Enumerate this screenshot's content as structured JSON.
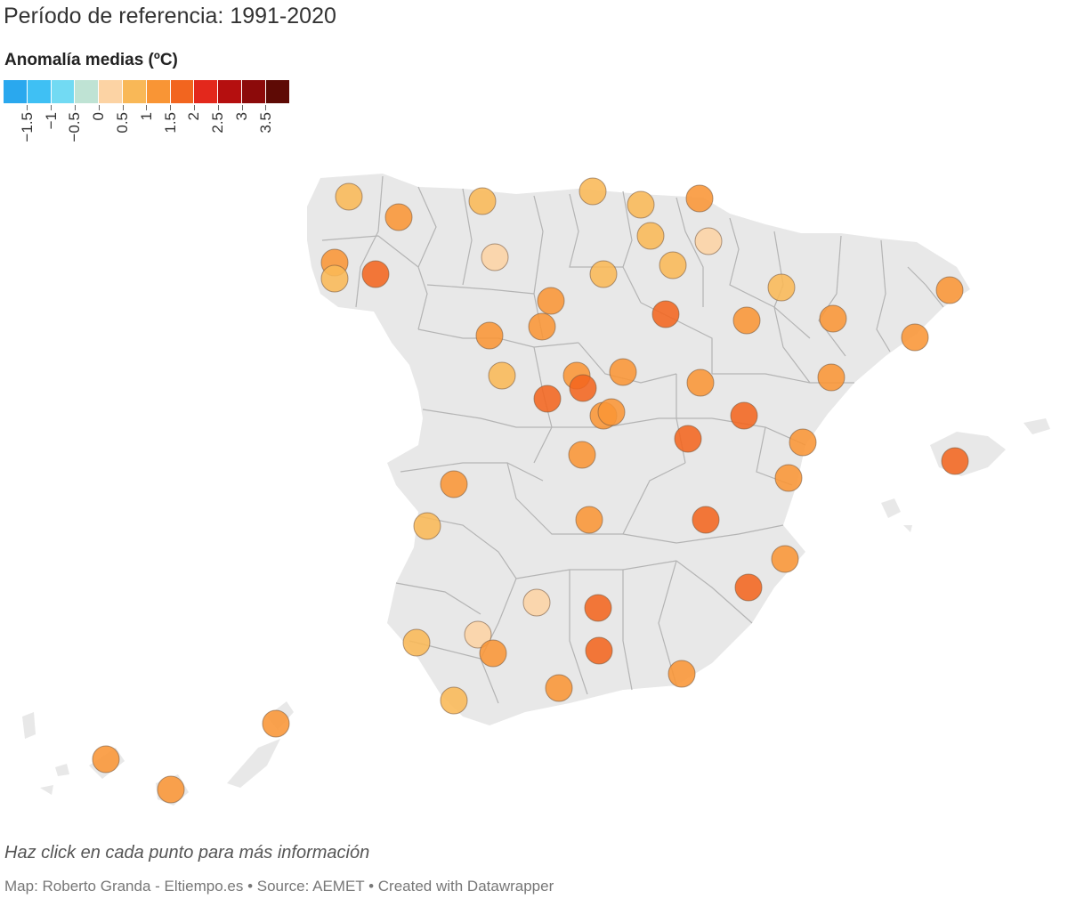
{
  "subtitle": "Período de referencia: 1991-2020",
  "legend": {
    "title": "Anomalía medias (ºC)",
    "swatches": [
      "#2aa8ee",
      "#3fc0f4",
      "#72daf3",
      "#bfe3d4",
      "#fcd3a4",
      "#f9b857",
      "#f99535",
      "#f2651f",
      "#e3281c",
      "#b50f0f",
      "#8c0a0a",
      "#5e0a05"
    ],
    "labels": [
      "−1.5",
      "−1",
      "−0.5",
      "0",
      "0.5",
      "1",
      "1.5",
      "2",
      "2.5",
      "3",
      "3.5"
    ]
  },
  "map": {
    "stations": [
      {
        "anomaly": 1.0
      },
      {
        "anomaly": 1.5
      },
      {
        "anomaly": 1.0
      },
      {
        "anomaly": 1.0
      },
      {
        "anomaly": 1.0
      },
      {
        "anomaly": 1.5
      },
      {
        "anomaly": 1.0
      },
      {
        "anomaly": 0.5
      },
      {
        "anomaly": 1.5
      },
      {
        "anomaly": 1.0
      },
      {
        "anomaly": 2.0
      },
      {
        "anomaly": 0.5
      },
      {
        "anomaly": 1.0
      },
      {
        "anomaly": 1.0
      },
      {
        "anomaly": 1.0
      },
      {
        "anomaly": 1.5
      },
      {
        "anomaly": 1.5
      },
      {
        "anomaly": 2.0
      },
      {
        "anomaly": 1.5
      },
      {
        "anomaly": 1.5
      },
      {
        "anomaly": 1.5
      },
      {
        "anomaly": 1.5
      },
      {
        "anomaly": 1.0
      },
      {
        "anomaly": 1.5
      },
      {
        "anomaly": 2.0
      },
      {
        "anomaly": 1.5
      },
      {
        "anomaly": 2.0
      },
      {
        "anomaly": 1.5
      },
      {
        "anomaly": 1.5
      },
      {
        "anomaly": 1.5
      },
      {
        "anomaly": 2.0
      },
      {
        "anomaly": 1.5
      },
      {
        "anomaly": 1.5
      },
      {
        "anomaly": 2.0
      },
      {
        "anomaly": 1.5
      },
      {
        "anomaly": 2.0
      },
      {
        "anomaly": 1.5
      },
      {
        "anomaly": 1.5
      },
      {
        "anomaly": 1.0
      },
      {
        "anomaly": 1.5
      },
      {
        "anomaly": 2.0
      },
      {
        "anomaly": 1.5
      },
      {
        "anomaly": 2.0
      },
      {
        "anomaly": 0.5
      },
      {
        "anomaly": 2.0
      },
      {
        "anomaly": 1.0
      },
      {
        "anomaly": 0.5
      },
      {
        "anomaly": 1.5
      },
      {
        "anomaly": 2.0
      },
      {
        "anomaly": 1.5
      },
      {
        "anomaly": 1.5
      },
      {
        "anomaly": 1.5
      },
      {
        "anomaly": 1.0
      },
      {
        "anomaly": 1.5
      },
      {
        "anomaly": 1.5
      },
      {
        "anomaly": 1.5
      }
    ]
  },
  "footer": {
    "note": "Haz click en cada punto para más información",
    "credits": "Map: Roberto Granda - Eltiempo.es • Source: AEMET • Created with Datawrapper"
  },
  "colors": {
    "land": "#e8e8e8",
    "border": "#b4b4b4",
    "dot_stroke": "#7a5a40"
  }
}
